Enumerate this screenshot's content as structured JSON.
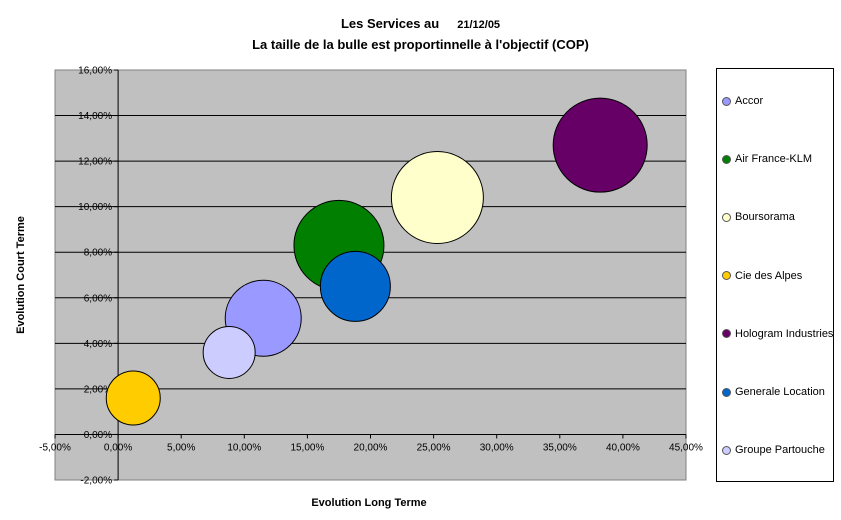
{
  "header": {
    "title": "Les Services au",
    "date": "21/12/05",
    "subtitle": "La taille de la bulle est proportinnelle à l'objectif (COP)"
  },
  "chart_data": {
    "type": "bubble",
    "xlabel": "Evolution Long Terme",
    "ylabel": "Evolution Court Terme",
    "xlim": [
      -0.05,
      0.45
    ],
    "ylim": [
      -0.02,
      0.16
    ],
    "xticks": [
      -0.05,
      0.0,
      0.05,
      0.1,
      0.15,
      0.2,
      0.25,
      0.3,
      0.35,
      0.4,
      0.45
    ],
    "xtick_labels": [
      "-5,00%",
      "0,00%",
      "5,00%",
      "10,00%",
      "15,00%",
      "20,00%",
      "25,00%",
      "30,00%",
      "35,00%",
      "40,00%",
      "45,00%"
    ],
    "yticks": [
      -0.02,
      0.0,
      0.02,
      0.04,
      0.06,
      0.08,
      0.1,
      0.12,
      0.14,
      0.16
    ],
    "ytick_labels": [
      "-2,00%",
      "0,00%",
      "2,00%",
      "4,00%",
      "6,00%",
      "8,00%",
      "10,00%",
      "12,00%",
      "14,00%",
      "16,00%"
    ],
    "grid": "horizontal",
    "legend_position": "right",
    "plot_background": "#c0c0c0",
    "series": [
      {
        "name": "Accor",
        "x": 0.115,
        "y": 0.051,
        "size": 38,
        "color": "#9999ff"
      },
      {
        "name": "Air France-KLM",
        "x": 0.175,
        "y": 0.083,
        "size": 45,
        "color": "#007f00"
      },
      {
        "name": "Boursorama",
        "x": 0.253,
        "y": 0.104,
        "size": 46,
        "color": "#ffffcc"
      },
      {
        "name": "Cie des Alpes",
        "x": 0.012,
        "y": 0.016,
        "size": 27,
        "color": "#ffcc00"
      },
      {
        "name": "Hologram Industries",
        "x": 0.382,
        "y": 0.127,
        "size": 47,
        "color": "#660066"
      },
      {
        "name": "Generale Location",
        "x": 0.188,
        "y": 0.065,
        "size": 35,
        "color": "#0066cc"
      },
      {
        "name": "Groupe Partouche",
        "x": 0.088,
        "y": 0.036,
        "size": 26,
        "color": "#ccccff"
      }
    ]
  }
}
